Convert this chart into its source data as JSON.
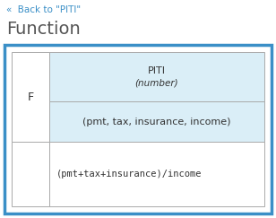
{
  "back_link_text": "«  Back to \"PITI\"",
  "title": "Function",
  "outer_border_color": "#3a8fc7",
  "outer_border_linewidth": 2.5,
  "table_border_color": "#aaaaaa",
  "header_bg_color": "#daeef7",
  "white_bg_color": "#ffffff",
  "page_bg_color": "#ffffff",
  "f_label": "F",
  "piti_name": "PITI",
  "piti_type": "(number)",
  "params_text": "(pmt, tax, insurance, income)",
  "expr_text": "(pmt+tax+insurance)/income",
  "back_link_color": "#3a8fc7",
  "title_color": "#555555",
  "text_color": "#333333",
  "back_fontsize": 7.5,
  "title_fontsize": 14,
  "cell_fontsize": 8,
  "expr_fontsize": 7.5
}
